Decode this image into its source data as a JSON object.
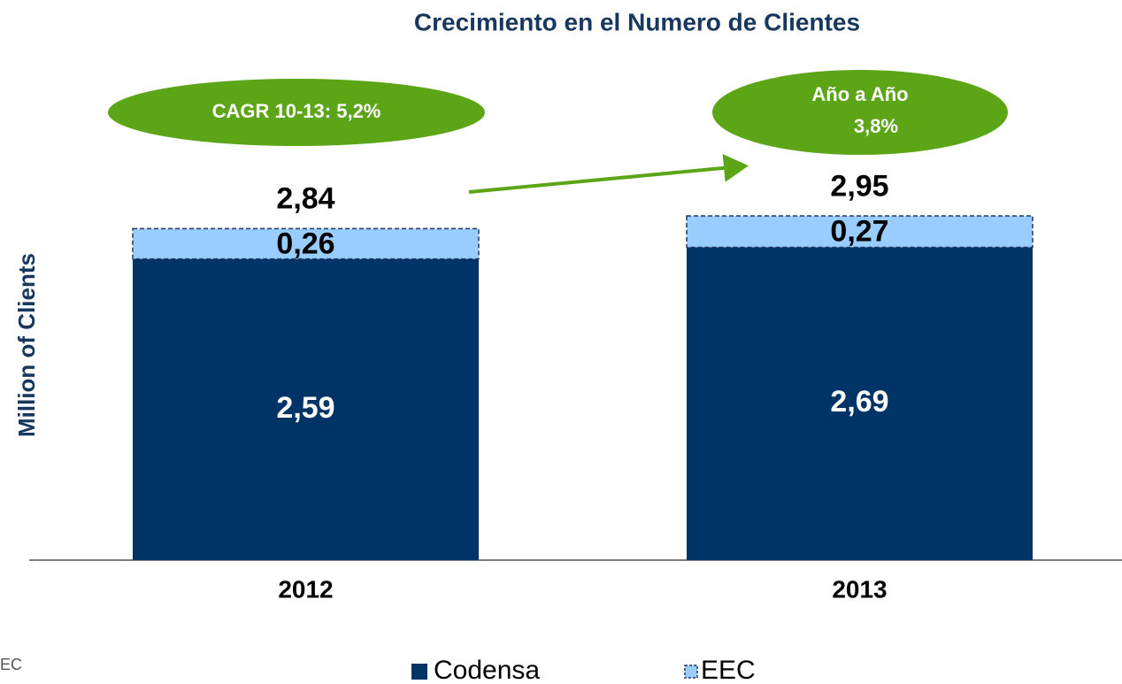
{
  "chart_data": {
    "type": "stacked_bar",
    "title": "Crecimiento en el Numero de Clientes",
    "y_label": "Million of Clients",
    "categories": [
      "2012",
      "2013"
    ],
    "series": [
      {
        "name": "Codensa",
        "color": "#003366",
        "values": [
          2.59,
          2.69
        ],
        "value_labels": [
          "2,59",
          "2,69"
        ]
      },
      {
        "name": "EEC",
        "color": "#99ccff",
        "values": [
          0.26,
          0.27
        ],
        "value_labels": [
          "0,26",
          "0,27"
        ]
      }
    ],
    "totals": [
      2.84,
      2.95
    ],
    "total_labels": [
      "2,84",
      "2,95"
    ],
    "ylim": [
      0,
      3.5
    ],
    "annotations": [
      "CAGR 10-13: 5,2%",
      "Año a Año",
      "3,8%"
    ],
    "footnote": "EC"
  }
}
